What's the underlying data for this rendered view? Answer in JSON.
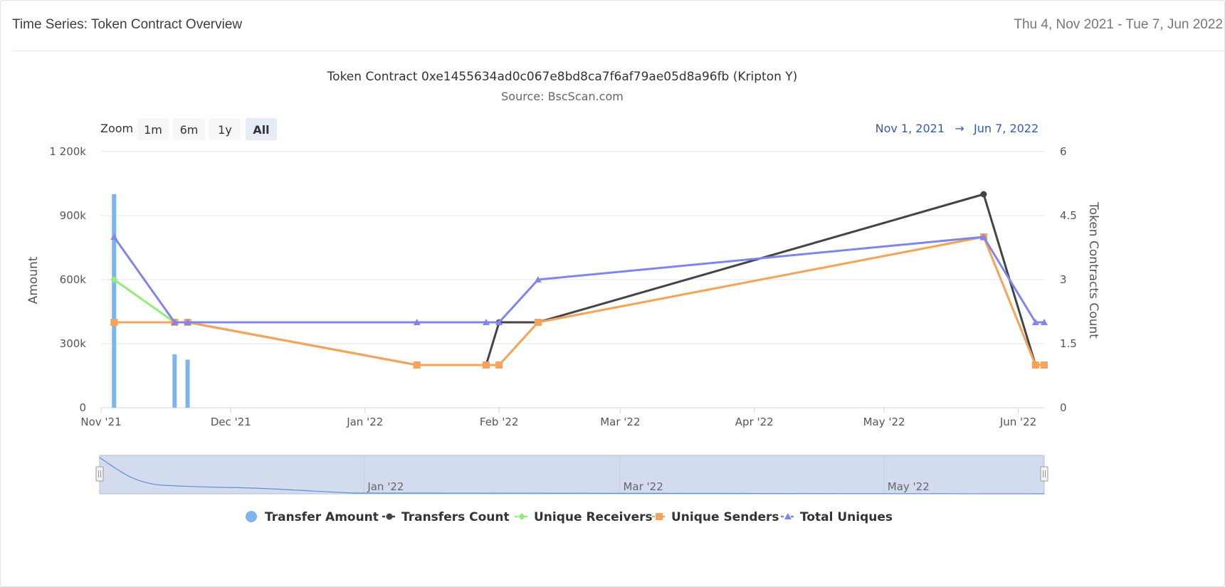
{
  "header": {
    "title": "Time Series: Token Contract Overview",
    "date_range": "Thu 4, Nov 2021 - Tue 7, Jun 2022"
  },
  "chart": {
    "title": "Token Contract 0xe1455634ad0c067e8bd8ca7f6af79ae05d8a96fb (Kripton Y)",
    "subtitle": "Source: BscScan.com",
    "zoom_label": "Zoom",
    "zoom_buttons": [
      "1m",
      "6m",
      "1y",
      "All"
    ],
    "zoom_active": "All",
    "zoom_disabled": "1y",
    "range_from": "Nov 1, 2021",
    "range_arrow": "→",
    "range_to": "Jun 7, 2022"
  },
  "chart_data": {
    "type": "line",
    "title": "Token Contract 0xe1455634ad0c067e8bd8ca7f6af79ae05d8a96fb (Kripton Y)",
    "subtitle": "Source: BscScan.com",
    "x_axis": {
      "type": "datetime",
      "range": [
        "2021-11-01",
        "2022-06-07"
      ],
      "tick_labels": [
        "Nov '21",
        "Dec '21",
        "Jan '22",
        "Feb '22",
        "Mar '22",
        "Apr '22",
        "May '22",
        "Jun '22"
      ],
      "tick_dates": [
        "2021-11-01",
        "2021-12-01",
        "2022-01-01",
        "2022-02-01",
        "2022-03-01",
        "2022-04-01",
        "2022-05-01",
        "2022-06-01"
      ]
    },
    "y_axis_left": {
      "label": "Amount",
      "range": [
        0,
        1200000
      ],
      "tick_values": [
        0,
        300000,
        600000,
        900000,
        1200000
      ],
      "tick_labels": [
        "0",
        "300k",
        "600k",
        "900k",
        "1 200k"
      ]
    },
    "y_axis_right": {
      "label": "Token Contracts Count",
      "range": [
        0,
        6
      ],
      "tick_values": [
        0,
        1.5,
        3,
        4.5,
        6
      ],
      "tick_labels": [
        "0",
        "1.5",
        "3",
        "4.5",
        "6"
      ]
    },
    "grid": true,
    "legend_position": "bottom-center",
    "series": [
      {
        "name": "Transfer Amount",
        "kind": "column",
        "axis": "left",
        "color": "#7cb5ec",
        "marker": "circle",
        "points": [
          [
            "2021-11-04",
            1000000
          ],
          [
            "2021-11-18",
            250000
          ],
          [
            "2021-11-21",
            225000
          ]
        ]
      },
      {
        "name": "Transfers Count",
        "kind": "line",
        "axis": "right",
        "color": "#434348",
        "marker": "circle",
        "points": [
          [
            "2021-11-04",
            2
          ],
          [
            "2021-11-18",
            2
          ],
          [
            "2021-11-21",
            2
          ],
          [
            "2022-01-13",
            1
          ],
          [
            "2022-01-29",
            1
          ],
          [
            "2022-02-01",
            2
          ],
          [
            "2022-02-10",
            2
          ],
          [
            "2022-05-24",
            5
          ],
          [
            "2022-06-05",
            1
          ],
          [
            "2022-06-07",
            1
          ]
        ]
      },
      {
        "name": "Unique Receivers",
        "kind": "line",
        "axis": "right",
        "color": "#90ed7d",
        "marker": "diamond",
        "points": [
          [
            "2021-11-04",
            3
          ],
          [
            "2021-11-18",
            2
          ],
          [
            "2021-11-21",
            2
          ],
          [
            "2022-01-13",
            1
          ],
          [
            "2022-01-29",
            1
          ],
          [
            "2022-02-01",
            1
          ],
          [
            "2022-02-10",
            2
          ],
          [
            "2022-05-24",
            4
          ],
          [
            "2022-06-05",
            1
          ],
          [
            "2022-06-07",
            1
          ]
        ]
      },
      {
        "name": "Unique Senders",
        "kind": "line",
        "axis": "right",
        "color": "#f7a35c",
        "marker": "square",
        "points": [
          [
            "2021-11-04",
            2
          ],
          [
            "2021-11-18",
            2
          ],
          [
            "2021-11-21",
            2
          ],
          [
            "2022-01-13",
            1
          ],
          [
            "2022-01-29",
            1
          ],
          [
            "2022-02-01",
            1
          ],
          [
            "2022-02-10",
            2
          ],
          [
            "2022-05-24",
            4
          ],
          [
            "2022-06-05",
            1
          ],
          [
            "2022-06-07",
            1
          ]
        ]
      },
      {
        "name": "Total Uniques",
        "kind": "line",
        "axis": "right",
        "color": "#8085e9",
        "marker": "triangle",
        "points": [
          [
            "2021-11-04",
            4
          ],
          [
            "2021-11-18",
            2
          ],
          [
            "2021-11-21",
            2
          ],
          [
            "2022-01-13",
            2
          ],
          [
            "2022-01-29",
            2
          ],
          [
            "2022-02-01",
            2
          ],
          [
            "2022-02-10",
            3
          ],
          [
            "2022-05-24",
            4
          ],
          [
            "2022-06-05",
            2
          ],
          [
            "2022-06-07",
            2
          ]
        ]
      }
    ],
    "navigator": {
      "tick_labels": [
        "Jan '22",
        "Mar '22",
        "May '22"
      ],
      "tick_dates": [
        "2022-01-01",
        "2022-03-01",
        "2022-05-01"
      ],
      "selected_range": [
        "2021-11-01",
        "2022-06-07"
      ]
    }
  },
  "colors": {
    "grid": "#e6e6e6",
    "navigator_fill": "#d3dbef",
    "navigator_border": "#b3bfdc",
    "navigator_line": "#5b8fd8",
    "zoom_active_bg": "#e6ebf5",
    "zoom_bg": "#f7f7f7"
  }
}
